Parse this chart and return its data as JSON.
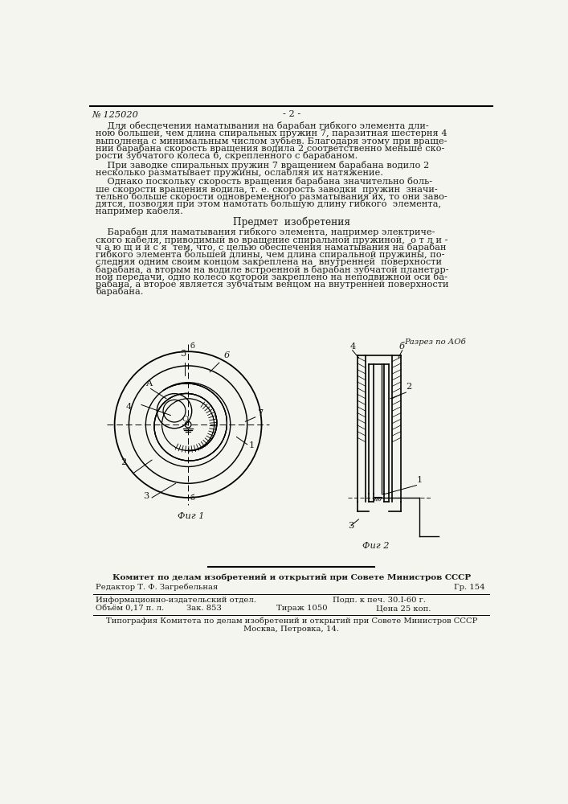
{
  "patent_number": "№ 125020",
  "page_number": "- 2 -",
  "background_color": "#f5f5f0",
  "text_color": "#1a1a1a",
  "para1_lines": [
    "    Для обеспечения наматывания на барабан гибкого элемента дли-",
    "ною большей, чем длина спиральных пружин 7, паразитная шестерня 4",
    "выполнена с минимальным числом зубьев. Благодаря этому при враще-",
    "нии барабана скорость вращения водила 2 соответственно меньше ско-",
    "рости зубчатого колеса 6, скрепленного с барабаном."
  ],
  "para2_lines": [
    "    При заводке спиральных пружин 7 вращением барабана водило 2",
    "несколько разматывает пружины, ослабляя их натяжение."
  ],
  "para3_lines": [
    "    Однако поскольку скорость вращения барабана значительно боль-",
    "ше скорости вращения водила, т. е. скорость заводки  пружин  значи-",
    "тельно больше скорости одновременного разматывания их, то они заво-",
    "дятся, позволяя при этом намотать большую длину гибкого  элемента,",
    "например кабеля."
  ],
  "section_title": "Предмет  изобретения",
  "patent_lines": [
    "    Барабан для наматывания гибкого элемента, например электриче-",
    "ского кабеля, приводимый во вращение спиральной пружиной,  о т л и -",
    "ч а ю щ и й с я  тем, что, с целью обеспечения наматывания на барабан",
    "гибкого элемента большей длины, чем длина спиральной пружины, по-",
    "следняя одним своим концом закреплена на  внутренней  поверхности",
    "барабана, а вторым на водиле встроенной в барабан зубчатой планетар-",
    "ной передачи, одно колесо которой закреплено на неподвижной оси ба-",
    "рабана, а второе является зубчатым венцом на внутренней поверхности",
    "барабана."
  ],
  "fig1_label": "Фиг 1",
  "fig2_label": "Фиг 2",
  "fig2_section_label": "Разрез по АОб",
  "footer_line1": "Комитет по делам изобретений и открытий при Совете Министров СССР",
  "footer_editor": "Редактор Т. Ф. Загребельная",
  "footer_gr": "Гр. 154",
  "footer_info1": "Информационно-издательский отдел.",
  "footer_info2": "Объём 0,17 п. л.",
  "footer_zak": "Зак. 853",
  "footer_tirazh": "Тираж 1050",
  "footer_podp": "Подп. к печ. 30.I-60 г.",
  "footer_price": "Цена 25 коп.",
  "footer_typo1": "Типография Комитета по делам изобретений и открытий при Совете Министров СССР",
  "footer_typo2": "Москва, Петровка, 14."
}
